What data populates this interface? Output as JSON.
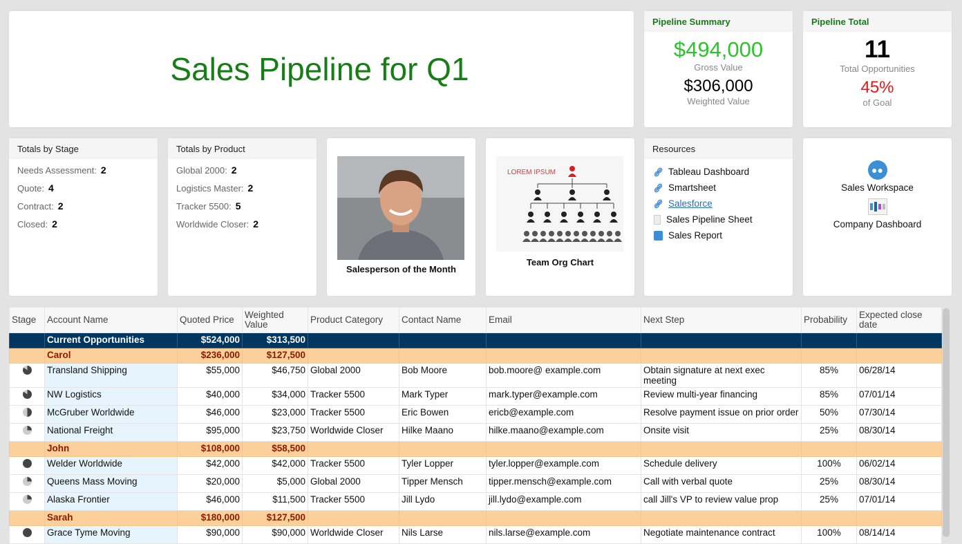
{
  "title": "Sales Pipeline for Q1",
  "summary": {
    "heading": "Pipeline Summary",
    "gross": "$494,000",
    "gross_label": "Gross Value",
    "weighted": "$306,000",
    "weighted_label": "Weighted Value"
  },
  "total": {
    "heading": "Pipeline Total",
    "count": "11",
    "count_label": "Total Opportunities",
    "pct": "45%",
    "pct_label": "of Goal"
  },
  "stage": {
    "heading": "Totals by Stage",
    "items": [
      {
        "k": "Needs Assessment:",
        "v": "2"
      },
      {
        "k": "Quote:",
        "v": "4"
      },
      {
        "k": "Contract:",
        "v": "2"
      },
      {
        "k": "Closed:",
        "v": "2"
      }
    ]
  },
  "product": {
    "heading": "Totals by Product",
    "items": [
      {
        "k": "Global 2000:",
        "v": "2"
      },
      {
        "k": "Logistics Master:",
        "v": "2"
      },
      {
        "k": "Tracker 5500:",
        "v": "5"
      },
      {
        "k": "Worldwide Closer:",
        "v": "2"
      }
    ]
  },
  "salesperson": {
    "caption": "Salesperson of the Month"
  },
  "org": {
    "caption": "Team Org Chart",
    "logo_text": "LOREM IPSUM"
  },
  "resources": {
    "heading": "Resources",
    "items": [
      {
        "label": "Tableau Dashboard",
        "icon": "link-icon"
      },
      {
        "label": "Smartsheet",
        "icon": "link-icon"
      },
      {
        "label": "Salesforce",
        "icon": "link-icon"
      },
      {
        "label": "Sales Pipeline Sheet",
        "icon": "sheet-icon"
      },
      {
        "label": "Sales Report",
        "icon": "report-icon"
      }
    ]
  },
  "workspace": {
    "items": [
      {
        "label": "Sales Workspace",
        "icon": "workspace-icon"
      },
      {
        "label": "Company Dashboard",
        "icon": "dashboard-icon"
      }
    ]
  },
  "colors": {
    "green": "#177d17",
    "red": "#e8161b",
    "bright_green": "#2bc42b",
    "navy": "#003660",
    "group": "#fcd09a"
  },
  "table": {
    "headers": [
      "Stage",
      "Account Name",
      "Quoted Price",
      "Weighted Value",
      "Product Category",
      "Contact Name",
      "Email",
      "Next Step",
      "Probability",
      "Expected close date"
    ],
    "current": {
      "label": "Current Opportunities",
      "quoted": "$524,000",
      "weighted": "$313,500"
    },
    "groups": [
      {
        "name": "Carol",
        "quoted": "$236,000",
        "weighted": "$127,500",
        "rows": [
          [
            "Transland Shipping",
            "$55,000",
            "$46,750",
            "Global 2000",
            "Bob Moore",
            "bob.moore@ example.com",
            "Obtain signature at next exec meeting",
            "85%",
            "06/28/14"
          ],
          [
            "NW Logistics",
            "$40,000",
            "$34,000",
            "Tracker 5500",
            "Mark Typer",
            "mark.typer@example.com",
            "Review multi-year financing",
            "85%",
            "07/01/14"
          ],
          [
            "McGruber Worldwide",
            "$46,000",
            "$23,000",
            "Tracker 5500",
            "Eric Bowen",
            "ericb@example.com",
            "Resolve payment issue on prior order",
            "50%",
            "07/30/14"
          ],
          [
            "National Freight",
            "$95,000",
            "$23,750",
            "Worldwide Closer",
            "Hilke Maano",
            "hilke.maano@example.com",
            "Onsite visit",
            "25%",
            "08/30/14"
          ]
        ]
      },
      {
        "name": "John",
        "quoted": "$108,000",
        "weighted": "$58,500",
        "rows": [
          [
            "Welder Worldwide",
            "$42,000",
            "$42,000",
            "Tracker 5500",
            "Tyler Lopper",
            "tyler.lopper@example.com",
            "Schedule delivery",
            "100%",
            "06/02/14"
          ],
          [
            "Queens Mass Moving",
            "$20,000",
            "$5,000",
            "Global 2000",
            "Tipper Mensch",
            "tipper.mensch@example.com",
            "Call with verbal quote",
            "25%",
            "08/30/14"
          ],
          [
            "Alaska Frontier",
            "$46,000",
            "$11,500",
            "Tracker 5500",
            "Jill Lydo",
            "jill.lydo@example.com",
            "call Jill's VP to review value prop",
            "25%",
            "07/01/14"
          ]
        ]
      },
      {
        "name": "Sarah",
        "quoted": "$180,000",
        "weighted": "$127,500",
        "rows": [
          [
            "Grace Tyme Moving",
            "$90,000",
            "$90,000",
            "Worldwide Closer",
            "Nils Larse",
            "nils.larse@example.com",
            "Negotiate maintenance contract",
            "100%",
            "08/14/14"
          ]
        ]
      }
    ]
  }
}
